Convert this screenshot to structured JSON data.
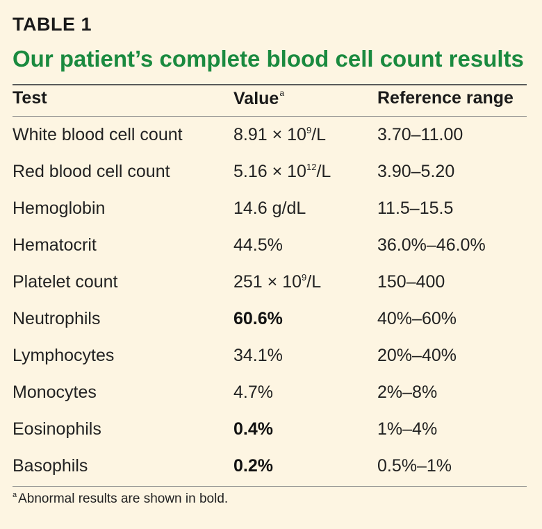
{
  "table_label": "TABLE 1",
  "title": "Our patient’s complete blood cell count results",
  "headers": {
    "test": "Test",
    "value": "Value",
    "value_marker": "a",
    "reference": "Reference range"
  },
  "rows": [
    {
      "test": "White blood cell count",
      "value_base": "8.91 × 10",
      "value_exp": "9",
      "value_unit": "/L",
      "reference": "3.70–11.00",
      "abnormal": false
    },
    {
      "test": "Red blood cell count",
      "value_base": "5.16 × 10",
      "value_exp": "12",
      "value_unit": "/L",
      "reference": "3.90–5.20",
      "abnormal": false
    },
    {
      "test": "Hemoglobin",
      "value_base": "14.6 g/dL",
      "value_exp": "",
      "value_unit": "",
      "reference": "11.5–15.5",
      "abnormal": false
    },
    {
      "test": "Hematocrit",
      "value_base": "44.5%",
      "value_exp": "",
      "value_unit": "",
      "reference": "36.0%–46.0%",
      "abnormal": false
    },
    {
      "test": "Platelet count",
      "value_base": "251 × 10",
      "value_exp": "9",
      "value_unit": "/L",
      "reference": "150–400",
      "abnormal": false
    },
    {
      "test": "Neutrophils",
      "value_base": "60.6%",
      "value_exp": "",
      "value_unit": "",
      "reference": "40%–60%",
      "abnormal": true
    },
    {
      "test": "Lymphocytes",
      "value_base": "34.1%",
      "value_exp": "",
      "value_unit": "",
      "reference": "20%–40%",
      "abnormal": false
    },
    {
      "test": "Monocytes",
      "value_base": "4.7%",
      "value_exp": "",
      "value_unit": "",
      "reference": "2%–8%",
      "abnormal": false
    },
    {
      "test": "Eosinophils",
      "value_base": "0.4%",
      "value_exp": "",
      "value_unit": "",
      "reference": "1%–4%",
      "abnormal": true
    },
    {
      "test": "Basophils",
      "value_base": "0.2%",
      "value_exp": "",
      "value_unit": "",
      "reference": "0.5%–1%",
      "abnormal": true
    }
  ],
  "footnote": {
    "marker": "a",
    "text": "Abnormal results are shown in bold."
  },
  "colors": {
    "title": "#1a8a3f",
    "background": "#fdf5e2"
  }
}
